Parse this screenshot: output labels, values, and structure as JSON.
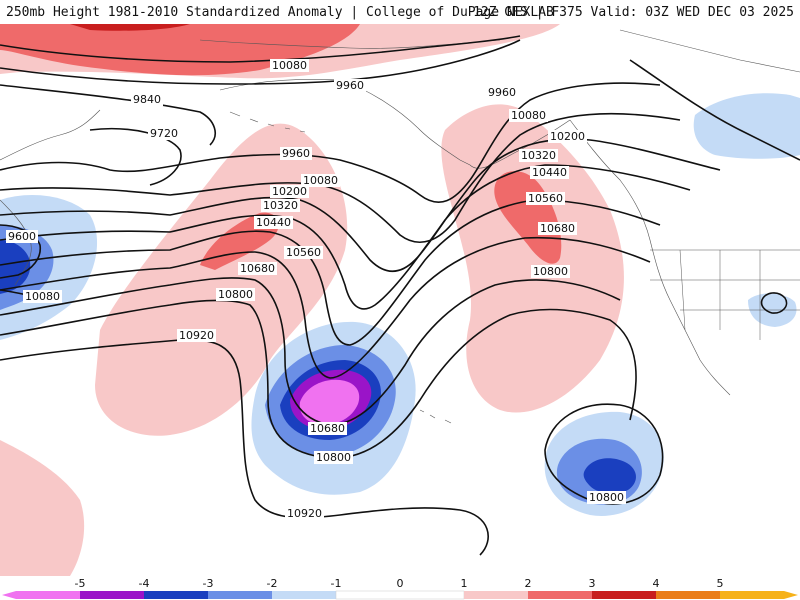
{
  "header": {
    "title_left": "250mb Height 1981-2010 Standardized Anomaly | College of DuPage NEXLAB",
    "title_right": "12Z GFS | F375 Valid: 03Z WED DEC 03 2025"
  },
  "colors": {
    "anom_neg5": "#f072f0",
    "anom_neg4": "#9a14c8",
    "anom_neg3": "#1a3fbf",
    "anom_neg2": "#6b8fe6",
    "anom_neg1": "#c4dbf6",
    "anom_pos1": "#f8c8c8",
    "anom_pos2": "#ef6a6a",
    "anom_pos3": "#c81e1e",
    "anom_pos4": "#ea7d1a",
    "anom_pos5": "#f6b21a"
  },
  "contour_labels": [
    {
      "id": "c10080-top",
      "text": "10080"
    },
    {
      "id": "c9960-top",
      "text": "9960"
    },
    {
      "id": "c9840",
      "text": "9840"
    },
    {
      "id": "c9720",
      "text": "9720"
    },
    {
      "id": "c9960-mid",
      "text": "9960"
    },
    {
      "id": "c10080-mid",
      "text": "10080"
    },
    {
      "id": "c10200-mid",
      "text": "10200"
    },
    {
      "id": "c10320-mid",
      "text": "10320"
    },
    {
      "id": "c10440-mid",
      "text": "10440"
    },
    {
      "id": "c10560-mid",
      "text": "10560"
    },
    {
      "id": "c10680-mid",
      "text": "10680"
    },
    {
      "id": "c10800-mid",
      "text": "10800"
    },
    {
      "id": "c10920",
      "text": "10920"
    },
    {
      "id": "c9600",
      "text": "9600"
    },
    {
      "id": "c10080-left",
      "text": "10080"
    },
    {
      "id": "c9960-right",
      "text": "9960"
    },
    {
      "id": "c10080-right",
      "text": "10080"
    },
    {
      "id": "c10200-right",
      "text": "10200"
    },
    {
      "id": "c10320-right",
      "text": "10320"
    },
    {
      "id": "c10440-right",
      "text": "10440"
    },
    {
      "id": "c10560-right",
      "text": "10560"
    },
    {
      "id": "c10680-right",
      "text": "10680"
    },
    {
      "id": "c10800-right",
      "text": "10800"
    },
    {
      "id": "c10680-low",
      "text": "10680"
    },
    {
      "id": "c10800-low",
      "text": "10800"
    },
    {
      "id": "c10800-se",
      "text": "10800"
    },
    {
      "id": "c10920-south",
      "text": "10920"
    }
  ],
  "legend": {
    "ticks": [
      "-5",
      "-4",
      "-3",
      "-2",
      "-1",
      "0",
      "1",
      "2",
      "3",
      "4",
      "5"
    ]
  }
}
